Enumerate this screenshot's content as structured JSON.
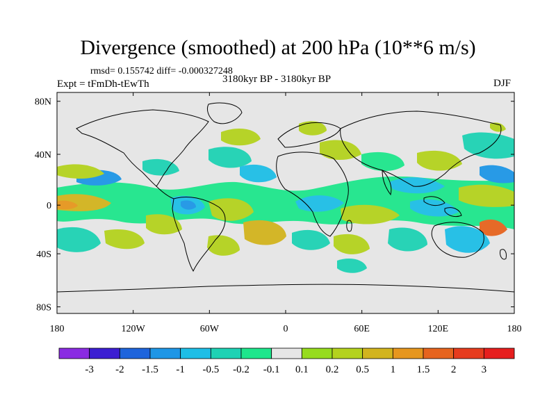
{
  "title": "Divergence (smoothed) at 200 hPa (10**6 m/s)",
  "stats": "rmsd= 0.155742 diff= -0.000327248",
  "experiment": "Expt = tFmDh-tEwTh",
  "period": "3180kyr BP - 3180kyr BP",
  "season": "DJF",
  "lat_labels": [
    "80N",
    "40N",
    "0",
    "40S",
    "80S"
  ],
  "lon_labels": [
    "180",
    "120W",
    "60W",
    "0",
    "60E",
    "120E",
    "180"
  ],
  "colorbar": {
    "labels": [
      "-3",
      "-2",
      "-1.5",
      "-1",
      "-0.5",
      "-0.2",
      "-0.1",
      "0.1",
      "0.2",
      "0.5",
      "1",
      "1.5",
      "2",
      "3"
    ],
    "colors": [
      "#8a2be2",
      "#3c1ed2",
      "#1e64dc",
      "#1e96e6",
      "#1ebee6",
      "#1ed2b4",
      "#1ee68c",
      "#e6e6e6",
      "#96dc1e",
      "#b4d21e",
      "#d2b41e",
      "#e6961e",
      "#e6641e",
      "#e63c1e",
      "#e61e1e"
    ]
  },
  "colors": {
    "background": "#e6e6e6",
    "land": "#000000"
  }
}
